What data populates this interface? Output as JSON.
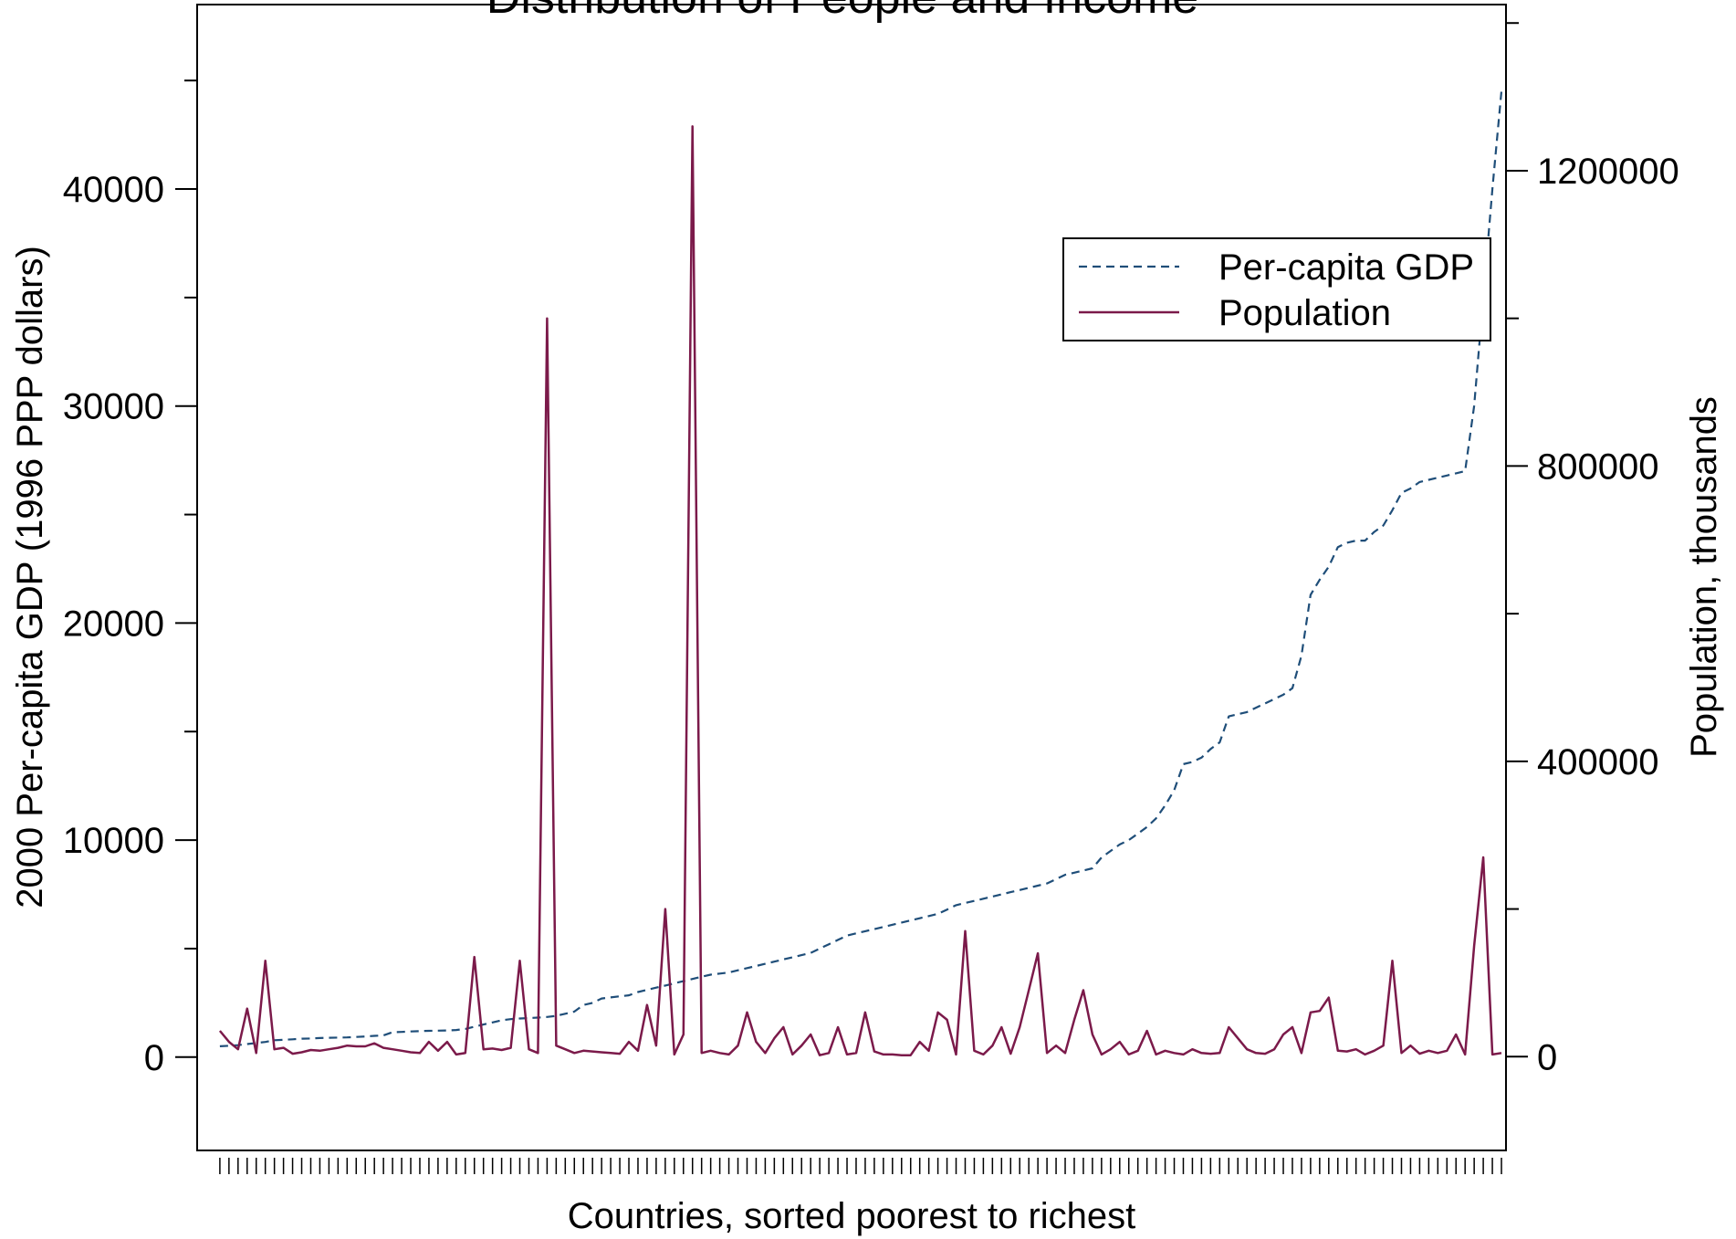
{
  "chart_data": {
    "type": "line",
    "title": "Distribution of People and Income",
    "xlabel": "Countries, sorted poorest to richest",
    "ylabel_left": "2000 Per-capita GDP (1996 PPP dollars)",
    "ylabel_right": "Population, thousands",
    "y_left_ticks": [
      0,
      10000,
      20000,
      30000,
      40000
    ],
    "y_left_range": [
      -4300,
      48500
    ],
    "y_right_ticks": [
      0,
      400000,
      800000,
      1200000
    ],
    "y_right_range": [
      -127000,
      1425000
    ],
    "x_range": [
      -2.5,
      141.5
    ],
    "x_ticks": 142,
    "grid": false,
    "legend_position": "top-right",
    "series": [
      {
        "name": "Per-capita GDP",
        "axis": "left",
        "style": "dashed",
        "color": "#1f4e79",
        "values": [
          500,
          520,
          550,
          600,
          650,
          700,
          780,
          800,
          820,
          850,
          860,
          880,
          890,
          900,
          910,
          930,
          950,
          980,
          1000,
          1150,
          1160,
          1180,
          1200,
          1210,
          1220,
          1230,
          1250,
          1300,
          1400,
          1500,
          1600,
          1700,
          1750,
          1780,
          1800,
          1820,
          1850,
          1900,
          2000,
          2100,
          2400,
          2500,
          2700,
          2750,
          2800,
          2850,
          3000,
          3100,
          3200,
          3300,
          3400,
          3500,
          3600,
          3700,
          3800,
          3850,
          3900,
          4000,
          4100,
          4200,
          4300,
          4400,
          4500,
          4600,
          4700,
          4800,
          5000,
          5200,
          5400,
          5600,
          5700,
          5800,
          5900,
          6000,
          6100,
          6200,
          6300,
          6400,
          6500,
          6600,
          6800,
          7000,
          7100,
          7200,
          7300,
          7400,
          7500,
          7600,
          7700,
          7800,
          7900,
          8000,
          8200,
          8400,
          8500,
          8600,
          8700,
          9200,
          9500,
          9800,
          10000,
          10300,
          10600,
          11000,
          11600,
          12300,
          13500,
          13600,
          13800,
          14200,
          14500,
          15700,
          15800,
          15900,
          16100,
          16300,
          16500,
          16700,
          17000,
          18500,
          21300,
          22000,
          22600,
          23500,
          23700,
          23800,
          23800,
          24200,
          24500,
          25200,
          26000,
          26200,
          26500,
          26600,
          26700,
          26800,
          26900,
          27000,
          30000,
          35000,
          40000,
          44500
        ]
      },
      {
        "name": "Population",
        "axis": "right",
        "style": "solid",
        "color": "#7b1a4a",
        "values": [
          35000,
          20000,
          10000,
          65000,
          5000,
          130000,
          10000,
          12000,
          4000,
          6000,
          9000,
          8000,
          10000,
          12000,
          15000,
          14000,
          14000,
          18000,
          12000,
          10000,
          8000,
          6000,
          5000,
          20000,
          8000,
          20000,
          3000,
          5000,
          135000,
          10000,
          11000,
          9000,
          12000,
          130000,
          10000,
          5000,
          1000000,
          15000,
          10000,
          5000,
          8000,
          7000,
          6000,
          5000,
          4000,
          20000,
          8000,
          70000,
          15000,
          200000,
          3000,
          30000,
          1260000,
          5000,
          8000,
          5000,
          3000,
          15000,
          60000,
          20000,
          5000,
          25000,
          40000,
          3000,
          15000,
          30000,
          2000,
          5000,
          40000,
          3000,
          5000,
          60000,
          7000,
          3000,
          3000,
          2000,
          2000,
          20000,
          8000,
          60000,
          50000,
          3000,
          170000,
          8000,
          3000,
          15000,
          40000,
          4000,
          40000,
          90000,
          140000,
          5000,
          15000,
          5000,
          50000,
          90000,
          30000,
          3000,
          10000,
          20000,
          3000,
          8000,
          35000,
          3000,
          8000,
          5000,
          3000,
          10000,
          5000,
          4000,
          5000,
          40000,
          25000,
          10000,
          5000,
          4000,
          10000,
          30000,
          40000,
          5000,
          60000,
          62000,
          80000,
          8000,
          7000,
          10000,
          3000,
          8000,
          15000,
          130000,
          5000,
          15000,
          4000,
          8000,
          5000,
          8000,
          30000,
          3000,
          150000,
          270000,
          3000,
          5000
        ]
      }
    ]
  }
}
